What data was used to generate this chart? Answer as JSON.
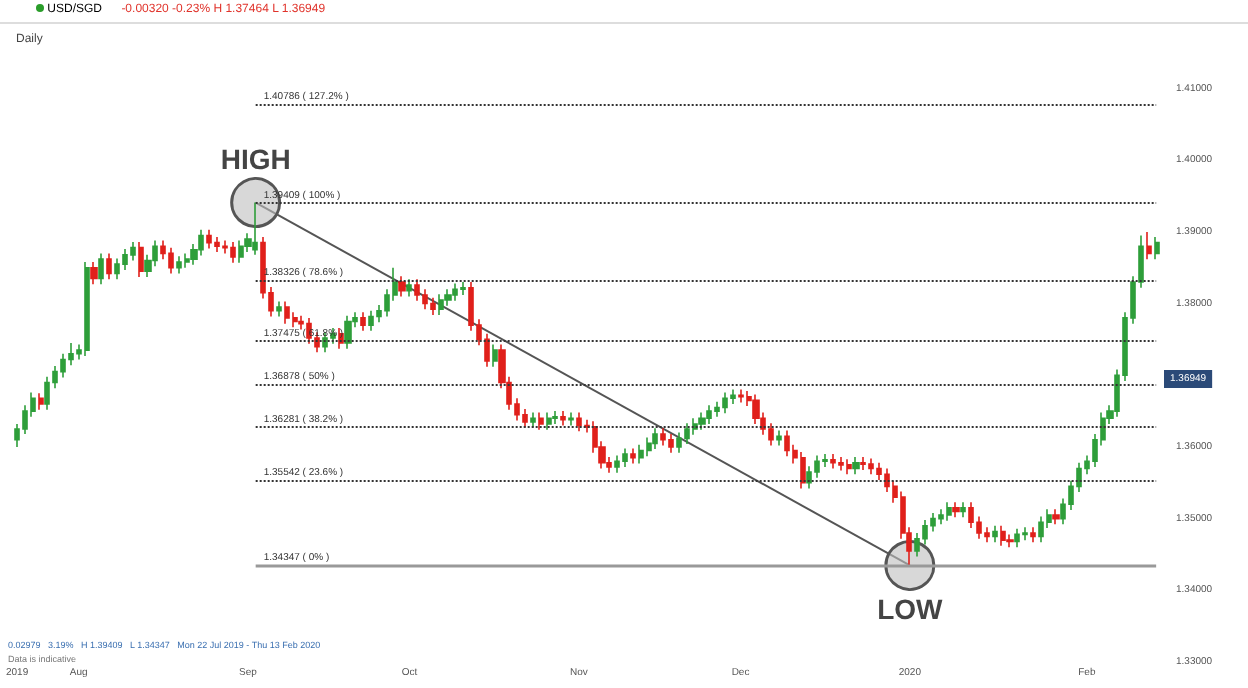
{
  "chart_data": {
    "type": "candlestick",
    "title": "USD/SGD",
    "subtitle": "-0.00320 -0.23% H 1.37464 L 1.36949",
    "categories": [
      "2019",
      null,
      null,
      null,
      null,
      null,
      null,
      null,
      "Aug",
      null,
      null,
      null,
      null,
      null,
      null,
      null,
      null,
      null,
      null,
      null,
      null,
      null,
      null,
      null,
      null,
      null,
      null,
      null,
      null,
      null,
      "Sep",
      null,
      null,
      null,
      null,
      null,
      null,
      null,
      null,
      null,
      null,
      null,
      null,
      null,
      null,
      null,
      null,
      null,
      null,
      null,
      null,
      "Oct",
      null,
      null,
      null,
      null,
      null,
      null,
      null,
      null,
      null,
      null,
      null,
      null,
      null,
      null,
      null,
      null,
      null,
      null,
      null,
      null,
      null,
      "Nov",
      null,
      null,
      null,
      null,
      null,
      null,
      null,
      null,
      null,
      null,
      null,
      null,
      null,
      null,
      null,
      null,
      null,
      null,
      null,
      null,
      "Dec",
      null,
      null,
      null,
      null,
      null,
      null,
      null,
      null,
      null,
      null,
      null,
      null,
      null,
      null,
      null,
      null,
      null,
      null,
      null,
      null,
      null,
      "2020",
      null,
      null,
      null,
      null,
      null,
      null,
      null,
      null,
      null,
      null,
      null,
      null,
      null,
      null,
      null,
      null,
      null,
      null,
      null,
      null,
      null,
      null,
      "Feb",
      null,
      null,
      null,
      null,
      null,
      null,
      null,
      null,
      null
    ],
    "series": [
      {
        "type": "candlestick",
        "ohlc": [
          [
            1.361,
            1.3632,
            1.36,
            1.3625
          ],
          [
            1.3625,
            1.3658,
            1.3618,
            1.365
          ],
          [
            1.365,
            1.3676,
            1.3642,
            1.3668
          ],
          [
            1.3668,
            1.3675,
            1.3652,
            1.366
          ],
          [
            1.366,
            1.3698,
            1.3652,
            1.369
          ],
          [
            1.369,
            1.3713,
            1.3682,
            1.3705
          ],
          [
            1.3705,
            1.373,
            1.3697,
            1.3722
          ],
          [
            1.3722,
            1.3745,
            1.3714,
            1.373
          ],
          [
            1.373,
            1.3743,
            1.3722,
            1.3735
          ],
          [
            1.3735,
            1.3858,
            1.3727,
            1.385
          ],
          [
            1.385,
            1.3858,
            1.3827,
            1.3835
          ],
          [
            1.3835,
            1.387,
            1.3827,
            1.3862
          ],
          [
            1.3862,
            1.387,
            1.3834,
            1.3842
          ],
          [
            1.3842,
            1.3863,
            1.3834,
            1.3855
          ],
          [
            1.3855,
            1.3876,
            1.3847,
            1.3868
          ],
          [
            1.3868,
            1.3886,
            1.386,
            1.3878
          ],
          [
            1.3878,
            1.3886,
            1.3837,
            1.3845
          ],
          [
            1.3845,
            1.3868,
            1.3837,
            1.386
          ],
          [
            1.386,
            1.3888,
            1.3852,
            1.388
          ],
          [
            1.388,
            1.3888,
            1.3862,
            1.387
          ],
          [
            1.387,
            1.3878,
            1.3842,
            1.385
          ],
          [
            1.385,
            1.3866,
            1.3842,
            1.3858
          ],
          [
            1.3858,
            1.387,
            1.385,
            1.3862
          ],
          [
            1.3862,
            1.3883,
            1.3854,
            1.3875
          ],
          [
            1.3875,
            1.3903,
            1.3867,
            1.3895
          ],
          [
            1.3895,
            1.3903,
            1.3877,
            1.3885
          ],
          [
            1.3885,
            1.3893,
            1.3872,
            1.388
          ],
          [
            1.388,
            1.3888,
            1.387,
            1.3878
          ],
          [
            1.3878,
            1.3886,
            1.3857,
            1.3865
          ],
          [
            1.3865,
            1.3888,
            1.3857,
            1.388
          ],
          [
            1.388,
            1.3898,
            1.3872,
            1.389
          ],
          [
            1.3875,
            1.39409,
            1.3868,
            1.3885
          ],
          [
            1.3885,
            1.3893,
            1.3807,
            1.3815
          ],
          [
            1.3815,
            1.3823,
            1.3782,
            1.379
          ],
          [
            1.379,
            1.3803,
            1.3782,
            1.3795
          ],
          [
            1.3795,
            1.3803,
            1.3772,
            1.378
          ],
          [
            1.378,
            1.3788,
            1.3767,
            1.3775
          ],
          [
            1.3775,
            1.3783,
            1.3764,
            1.3772
          ],
          [
            1.3772,
            1.378,
            1.3744,
            1.3752
          ],
          [
            1.3752,
            1.376,
            1.3732,
            1.374
          ],
          [
            1.374,
            1.376,
            1.3732,
            1.3752
          ],
          [
            1.3752,
            1.3766,
            1.3744,
            1.3758
          ],
          [
            1.3758,
            1.3766,
            1.3737,
            1.3745
          ],
          [
            1.3745,
            1.3783,
            1.3737,
            1.3775
          ],
          [
            1.3775,
            1.3788,
            1.3767,
            1.378
          ],
          [
            1.378,
            1.3788,
            1.3762,
            1.377
          ],
          [
            1.377,
            1.379,
            1.3762,
            1.3782
          ],
          [
            1.3782,
            1.3798,
            1.3774,
            1.379
          ],
          [
            1.379,
            1.382,
            1.3782,
            1.3812
          ],
          [
            1.3812,
            1.385,
            1.3804,
            1.383
          ],
          [
            1.383,
            1.3838,
            1.381,
            1.3818
          ],
          [
            1.3818,
            1.3834,
            1.381,
            1.3826
          ],
          [
            1.3826,
            1.3834,
            1.3804,
            1.3812
          ],
          [
            1.3812,
            1.382,
            1.3792,
            1.38
          ],
          [
            1.38,
            1.3808,
            1.3784,
            1.3792
          ],
          [
            1.3792,
            1.3813,
            1.3784,
            1.3805
          ],
          [
            1.3805,
            1.382,
            1.3797,
            1.3812
          ],
          [
            1.3812,
            1.3828,
            1.3804,
            1.382
          ],
          [
            1.382,
            1.383,
            1.3812,
            1.3822
          ],
          [
            1.3822,
            1.383,
            1.3762,
            1.377
          ],
          [
            1.377,
            1.3778,
            1.3742,
            1.375
          ],
          [
            1.375,
            1.3758,
            1.3712,
            1.372
          ],
          [
            1.372,
            1.3743,
            1.3712,
            1.3735
          ],
          [
            1.3735,
            1.3743,
            1.3682,
            1.369
          ],
          [
            1.369,
            1.3698,
            1.3652,
            1.366
          ],
          [
            1.366,
            1.3668,
            1.3637,
            1.3645
          ],
          [
            1.3645,
            1.3653,
            1.3627,
            1.3635
          ],
          [
            1.3635,
            1.3648,
            1.3627,
            1.364
          ],
          [
            1.364,
            1.3648,
            1.3624,
            1.3632
          ],
          [
            1.3632,
            1.3648,
            1.3624,
            1.364
          ],
          [
            1.364,
            1.365,
            1.3632,
            1.3642
          ],
          [
            1.3642,
            1.365,
            1.363,
            1.3638
          ],
          [
            1.3638,
            1.3648,
            1.363,
            1.364
          ],
          [
            1.364,
            1.3648,
            1.3622,
            1.363
          ],
          [
            1.363,
            1.3638,
            1.362,
            1.3628
          ],
          [
            1.3628,
            1.3636,
            1.3592,
            1.36
          ],
          [
            1.36,
            1.3608,
            1.357,
            1.3578
          ],
          [
            1.3578,
            1.3586,
            1.3564,
            1.3572
          ],
          [
            1.3572,
            1.3588,
            1.3564,
            1.358
          ],
          [
            1.358,
            1.3598,
            1.3572,
            1.359
          ],
          [
            1.359,
            1.3598,
            1.3577,
            1.3585
          ],
          [
            1.3585,
            1.3603,
            1.3577,
            1.3595
          ],
          [
            1.3595,
            1.3613,
            1.3587,
            1.3605
          ],
          [
            1.3605,
            1.3626,
            1.3597,
            1.3618
          ],
          [
            1.3618,
            1.3626,
            1.3602,
            1.361
          ],
          [
            1.361,
            1.3618,
            1.3592,
            1.36
          ],
          [
            1.36,
            1.362,
            1.3592,
            1.3612
          ],
          [
            1.3612,
            1.3633,
            1.3604,
            1.3625
          ],
          [
            1.3625,
            1.364,
            1.3617,
            1.3632
          ],
          [
            1.3632,
            1.3648,
            1.3624,
            1.364
          ],
          [
            1.364,
            1.3658,
            1.3632,
            1.365
          ],
          [
            1.365,
            1.3663,
            1.3642,
            1.3655
          ],
          [
            1.3655,
            1.3676,
            1.3647,
            1.3668
          ],
          [
            1.3668,
            1.368,
            1.366,
            1.3672
          ],
          [
            1.3672,
            1.368,
            1.3662,
            1.367
          ],
          [
            1.367,
            1.3678,
            1.3657,
            1.3665
          ],
          [
            1.3665,
            1.3673,
            1.3632,
            1.364
          ],
          [
            1.364,
            1.3648,
            1.3617,
            1.3625
          ],
          [
            1.3625,
            1.3633,
            1.3602,
            1.361
          ],
          [
            1.361,
            1.3623,
            1.3602,
            1.3615
          ],
          [
            1.3615,
            1.3623,
            1.3587,
            1.3595
          ],
          [
            1.3595,
            1.3603,
            1.3577,
            1.3585
          ],
          [
            1.3585,
            1.3593,
            1.3542,
            1.355
          ],
          [
            1.355,
            1.3573,
            1.3542,
            1.3565
          ],
          [
            1.3565,
            1.3588,
            1.3557,
            1.358
          ],
          [
            1.358,
            1.359,
            1.3572,
            1.3582
          ],
          [
            1.3582,
            1.359,
            1.357,
            1.3578
          ],
          [
            1.3578,
            1.3586,
            1.3567,
            1.3575
          ],
          [
            1.3575,
            1.3583,
            1.3562,
            1.357
          ],
          [
            1.357,
            1.3586,
            1.3562,
            1.3578
          ],
          [
            1.3578,
            1.3586,
            1.3568,
            1.3576
          ],
          [
            1.3576,
            1.3584,
            1.3562,
            1.357
          ],
          [
            1.357,
            1.3578,
            1.3554,
            1.3562
          ],
          [
            1.3562,
            1.357,
            1.3537,
            1.3545
          ],
          [
            1.3545,
            1.3553,
            1.3522,
            1.353
          ],
          [
            1.353,
            1.3538,
            1.3472,
            1.348
          ],
          [
            1.348,
            1.3488,
            1.34347,
            1.3455
          ],
          [
            1.3455,
            1.348,
            1.3447,
            1.3472
          ],
          [
            1.3472,
            1.3498,
            1.3464,
            1.349
          ],
          [
            1.349,
            1.3508,
            1.3482,
            1.35
          ],
          [
            1.35,
            1.3513,
            1.3492,
            1.3505
          ],
          [
            1.3505,
            1.3523,
            1.3497,
            1.3515
          ],
          [
            1.3515,
            1.3523,
            1.3502,
            1.351
          ],
          [
            1.351,
            1.3523,
            1.3502,
            1.3515
          ],
          [
            1.3515,
            1.3523,
            1.3487,
            1.3495
          ],
          [
            1.3495,
            1.3503,
            1.3472,
            1.348
          ],
          [
            1.348,
            1.3488,
            1.3467,
            1.3475
          ],
          [
            1.3475,
            1.349,
            1.3467,
            1.3482
          ],
          [
            1.3482,
            1.349,
            1.3462,
            1.347
          ],
          [
            1.347,
            1.3478,
            1.346,
            1.3468
          ],
          [
            1.3468,
            1.3486,
            1.346,
            1.3478
          ],
          [
            1.3478,
            1.3488,
            1.347,
            1.348
          ],
          [
            1.348,
            1.3488,
            1.3467,
            1.3475
          ],
          [
            1.3475,
            1.3503,
            1.3467,
            1.3495
          ],
          [
            1.3495,
            1.3513,
            1.3487,
            1.3505
          ],
          [
            1.3505,
            1.3513,
            1.3492,
            1.35
          ],
          [
            1.35,
            1.3528,
            1.3492,
            1.352
          ],
          [
            1.352,
            1.3553,
            1.3512,
            1.3545
          ],
          [
            1.3545,
            1.3578,
            1.3537,
            1.357
          ],
          [
            1.357,
            1.3588,
            1.3562,
            1.358
          ],
          [
            1.358,
            1.3618,
            1.3572,
            1.361
          ],
          [
            1.361,
            1.3648,
            1.3602,
            1.364
          ],
          [
            1.364,
            1.3658,
            1.3632,
            1.365
          ],
          [
            1.365,
            1.3708,
            1.3642,
            1.37
          ],
          [
            1.37,
            1.3788,
            1.3692,
            1.378
          ],
          [
            1.378,
            1.3838,
            1.3772,
            1.383
          ],
          [
            1.383,
            1.3895,
            1.3822,
            1.388
          ],
          [
            1.388,
            1.39,
            1.3862,
            1.387
          ],
          [
            1.387,
            1.3893,
            1.3862,
            1.3885
          ]
        ]
      },
      {
        "type": "line",
        "color": "#555555",
        "values": [
          null,
          null,
          null,
          null,
          null,
          null,
          null,
          null,
          null,
          null,
          null,
          null,
          null,
          null,
          null,
          null,
          null,
          null,
          null,
          null,
          null,
          null,
          null,
          null,
          null,
          null,
          null,
          null,
          null,
          null,
          null,
          1.39409,
          null,
          null,
          null,
          null,
          null,
          null,
          null,
          null,
          null,
          null,
          null,
          null,
          null,
          null,
          null,
          null,
          null,
          null,
          null,
          null,
          null,
          null,
          null,
          null,
          null,
          null,
          null,
          null,
          null,
          null,
          null,
          null,
          null,
          null,
          null,
          null,
          null,
          null,
          null,
          null,
          null,
          null,
          null,
          null,
          null,
          null,
          null,
          null,
          null,
          null,
          null,
          null,
          null,
          null,
          null,
          null,
          null,
          null,
          null,
          null,
          null,
          null,
          null,
          null,
          null,
          null,
          null,
          null,
          null,
          null,
          null,
          null,
          null,
          null,
          null,
          null,
          null,
          null,
          null,
          null,
          null,
          null,
          null,
          null,
          1.34347,
          null,
          null,
          null,
          null,
          null,
          null,
          null,
          null,
          null,
          null,
          null,
          null,
          null,
          null,
          null,
          null,
          null,
          null,
          null,
          null,
          null,
          null,
          null,
          null,
          null,
          null,
          null,
          null,
          null,
          null,
          null,
          null
        ]
      }
    ],
    "ylim": [
      1.33,
      1.419
    ],
    "yticks": [
      {
        "value": 1.33,
        "label": "1.33000"
      },
      {
        "value": 1.34,
        "label": "1.34000"
      },
      {
        "value": 1.35,
        "label": "1.35000"
      },
      {
        "value": 1.36,
        "label": "1.36000"
      },
      {
        "value": 1.38,
        "label": "1.38000"
      },
      {
        "value": 1.39,
        "label": "1.39000"
      },
      {
        "value": 1.4,
        "label": "1.40000"
      },
      {
        "value": 1.41,
        "label": "1.41000"
      }
    ],
    "ref_lines": [
      {
        "axis": "y",
        "value": 1.40786,
        "label": "1.40786 ( 127.2% )",
        "color": "#333333",
        "line_style": "dotted"
      },
      {
        "axis": "y",
        "value": 1.39409,
        "label": "1.39409 ( 100% )",
        "color": "#333333",
        "line_style": "dotted"
      },
      {
        "axis": "y",
        "value": 1.38326,
        "label": "1.38326 ( 78.6% )",
        "color": "#333333",
        "line_style": "dotted"
      },
      {
        "axis": "y",
        "value": 1.37475,
        "label": "1.37475 ( 61.8% )",
        "color": "#333333",
        "line_style": "dotted"
      },
      {
        "axis": "y",
        "value": 1.36878,
        "label": "1.36878 ( 50% )",
        "color": "#333333",
        "line_style": "dotted"
      },
      {
        "axis": "y",
        "value": 1.36281,
        "label": "1.36281 ( 38.2% )",
        "color": "#333333",
        "line_style": "dotted"
      },
      {
        "axis": "y",
        "value": 1.35542,
        "label": "1.35542 ( 23.6% )",
        "color": "#333333",
        "line_style": "dotted"
      },
      {
        "axis": "y",
        "value": 1.34347,
        "label": "1.34347 ( 0% )",
        "color": "#999999",
        "line_style": "solid"
      }
    ],
    "annotations": [
      "Daily",
      "0.02979   3.19%   H 1.39409   L 1.34347   Mon 22 Jul 2019 - Thu 13 Feb 2020",
      "Data is indicative",
      {
        "text": "HIGH",
        "y": 1.39409
      },
      {
        "text": "LOW",
        "y": 1.34347
      },
      {
        "text": "1.36949",
        "y": 1.36949
      }
    ],
    "marker": "circle",
    "grid": false
  }
}
